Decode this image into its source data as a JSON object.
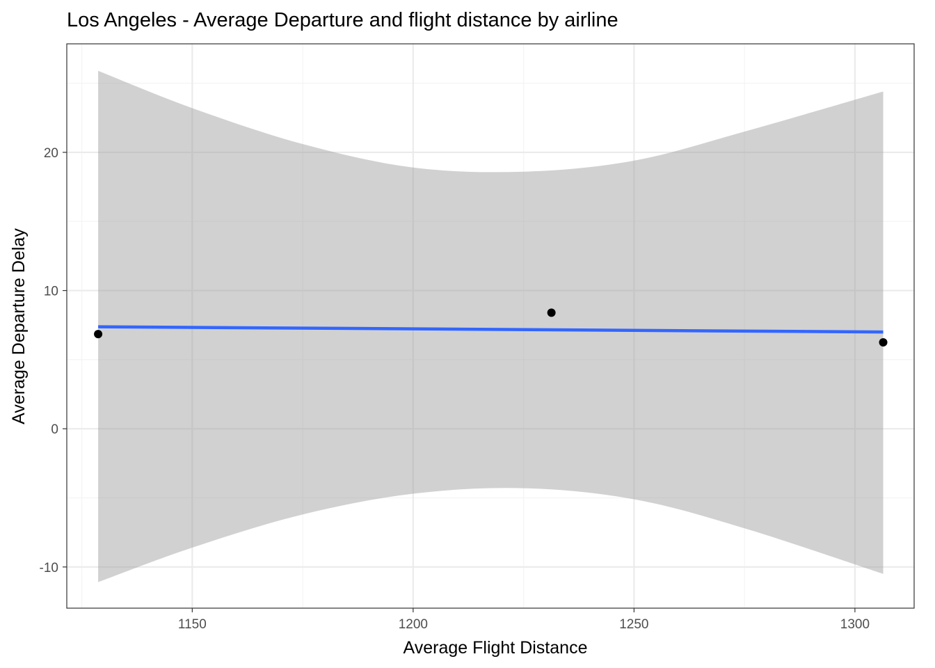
{
  "chart_data": {
    "type": "scatter",
    "title": "Los Angeles - Average Departure and flight distance by airline",
    "xlabel": "Average Flight Distance",
    "ylabel": "Average Departure Delay",
    "xlim": [
      1121.6,
      1313.4
    ],
    "ylim": [
      -12.98,
      27.85
    ],
    "x_ticks": [
      1150,
      1200,
      1250,
      1300
    ],
    "y_ticks": [
      -10,
      0,
      10,
      20
    ],
    "x_tick_labels": [
      "1150",
      "1200",
      "1250",
      "1300"
    ],
    "y_tick_labels": [
      "-10",
      "0",
      "10",
      "20"
    ],
    "grid": true,
    "points": [
      {
        "x": 1128.7,
        "y": 6.85
      },
      {
        "x": 1231.3,
        "y": 8.4
      },
      {
        "x": 1306.4,
        "y": 6.25
      }
    ],
    "trend_line": {
      "method": "linear",
      "x": [
        1128.7,
        1306.4
      ],
      "y": [
        7.38,
        7.0
      ]
    },
    "confidence_band": {
      "x": [
        1128.7,
        1150,
        1175,
        1200,
        1225,
        1250,
        1275,
        1306.4
      ],
      "upper": [
        25.9,
        23.2,
        20.6,
        18.9,
        18.6,
        19.4,
        21.5,
        24.4
      ],
      "lower": [
        -11.1,
        -8.6,
        -6.2,
        -4.7,
        -4.3,
        -5.1,
        -7.2,
        -10.5
      ]
    },
    "colors": {
      "points": "#000000",
      "trend_line": "#3366ff",
      "confidence_band": "#999999",
      "grid_major": "#ebebeb",
      "grid_minor": "#f4f4f4",
      "panel_border": "#333333"
    }
  }
}
